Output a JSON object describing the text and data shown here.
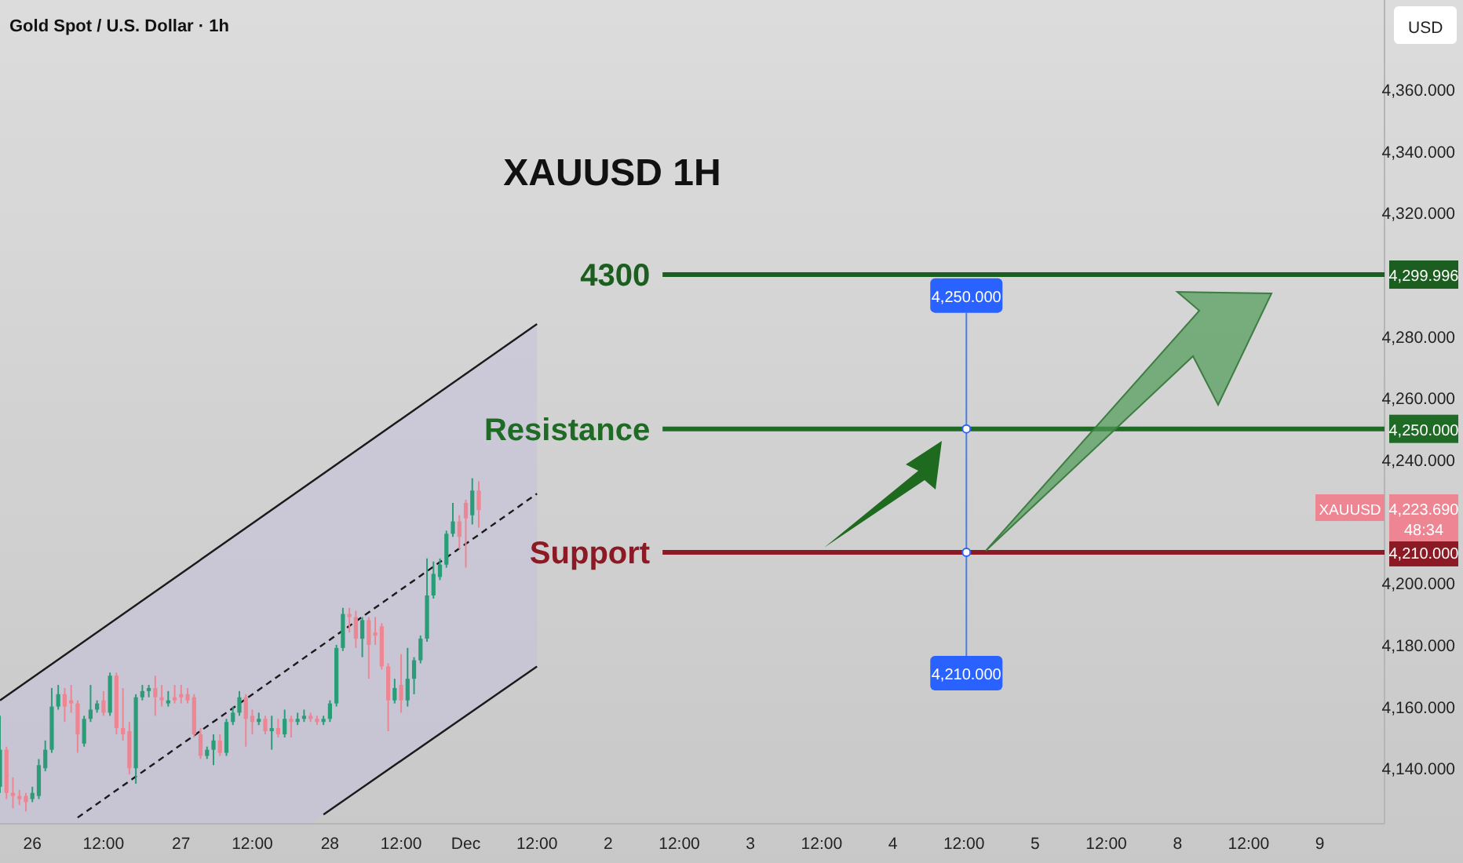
{
  "chart_data": {
    "type": "candlestick",
    "title": "Gold Spot / U.S. Dollar · 1h",
    "subtitle": "XAUUSD 1H",
    "categories": [
      null,
      null,
      null,
      null,
      null,
      "26",
      null,
      null,
      null,
      null,
      null,
      null,
      null,
      null,
      null,
      null,
      "12:00",
      null,
      null,
      null,
      null,
      null,
      null,
      null,
      null,
      null,
      null,
      null,
      "27",
      null,
      null,
      null,
      null,
      null,
      null,
      null,
      null,
      null,
      null,
      "12:00",
      null,
      null,
      null,
      null,
      null,
      null,
      null,
      null,
      null,
      null,
      null,
      "28",
      null,
      null,
      null,
      null,
      null,
      null,
      null,
      null,
      null,
      null,
      "12:00",
      null,
      null,
      null,
      null,
      null,
      null,
      null,
      null,
      null,
      "Dec",
      null,
      null,
      null,
      null,
      null,
      null,
      null,
      null,
      null,
      null,
      "12:00",
      null,
      null,
      null,
      null,
      null,
      null,
      null,
      null,
      null,
      null,
      "2",
      null,
      null,
      null,
      null,
      null,
      null,
      null,
      null,
      null,
      null,
      "12:00",
      null,
      null,
      null,
      null,
      null,
      null,
      null,
      null,
      null,
      null,
      "3",
      null,
      null,
      null,
      null,
      null,
      null,
      null,
      null,
      null,
      null,
      "12:00",
      null,
      null,
      null,
      null,
      null,
      null,
      null,
      null,
      null,
      null,
      "4",
      null,
      null,
      null,
      null,
      null,
      null,
      null,
      null,
      null,
      null,
      "12:00",
      null,
      null,
      null,
      null,
      null,
      null,
      null,
      null,
      null,
      null,
      "5",
      null,
      null,
      null,
      null,
      null,
      null,
      null,
      null,
      null,
      null,
      "12:00",
      null,
      null,
      null,
      null,
      null,
      null,
      null,
      null,
      null,
      null,
      "8",
      null,
      null,
      null,
      null,
      null,
      null,
      null,
      null,
      null,
      null,
      "12:00",
      null,
      null,
      null,
      null,
      null,
      null,
      null,
      null,
      null,
      null,
      "9",
      null,
      null,
      null,
      null,
      null,
      null,
      null,
      null,
      null,
      null
    ],
    "ohlc": [
      [
        4134,
        4157,
        4132,
        4146
      ],
      [
        4146,
        4147,
        4130,
        4132
      ],
      [
        4132,
        4137,
        4127,
        4131
      ],
      [
        4131,
        4133,
        4128,
        4130
      ],
      [
        4131,
        4132,
        4126,
        4129
      ],
      [
        4130,
        4134,
        4129,
        4132
      ],
      [
        4131,
        4143,
        4130,
        4141
      ],
      [
        4140,
        4149,
        4139,
        4146
      ],
      [
        4146,
        4166,
        4145,
        4160
      ],
      [
        4160,
        4167,
        4159,
        4164
      ],
      [
        4164,
        4166,
        4155,
        4160
      ],
      [
        4162,
        4167,
        4158,
        4161
      ],
      [
        4161,
        4162,
        4145,
        4151
      ],
      [
        4148,
        4157,
        4147,
        4156
      ],
      [
        4156,
        4167,
        4155,
        4159
      ],
      [
        4159,
        4162,
        4158,
        4161
      ],
      [
        4162,
        4165,
        4157,
        4158
      ],
      [
        4158,
        4171,
        4157,
        4170
      ],
      [
        4170,
        4171,
        4151,
        4153
      ],
      [
        4153,
        4166,
        4149,
        4151
      ],
      [
        4152,
        4155,
        4138,
        4140
      ],
      [
        4140,
        4164,
        4135,
        4163
      ],
      [
        4163,
        4167,
        4162,
        4165
      ],
      [
        4165,
        4167,
        4163,
        4166
      ],
      [
        4166,
        4170,
        4157,
        4163
      ],
      [
        4163,
        4167,
        4160,
        4162
      ],
      [
        4161,
        4165,
        4160,
        4162
      ],
      [
        4163,
        4167,
        4161,
        4162
      ],
      [
        4164,
        4167,
        4161,
        4163
      ],
      [
        4164,
        4166,
        4161,
        4162
      ],
      [
        4163,
        4164,
        4150,
        4151
      ],
      [
        4151,
        4153,
        4143,
        4144
      ],
      [
        4144,
        4147,
        4143,
        4146
      ],
      [
        4146,
        4151,
        4141,
        4149
      ],
      [
        4149,
        4151,
        4144,
        4145
      ],
      [
        4145,
        4156,
        4144,
        4155
      ],
      [
        4155,
        4160,
        4154,
        4158
      ],
      [
        4158,
        4165,
        4157,
        4163
      ],
      [
        4163,
        4164,
        4147,
        4156
      ],
      [
        4157,
        4159,
        4151,
        4155
      ],
      [
        4155,
        4158,
        4154,
        4156
      ],
      [
        4156,
        4157,
        4151,
        4152
      ],
      [
        4152,
        4157,
        4146,
        4153
      ],
      [
        4153,
        4156,
        4150,
        4151
      ],
      [
        4151,
        4159,
        4150,
        4156
      ],
      [
        4156,
        4157,
        4150,
        4155
      ],
      [
        4155,
        4158,
        4154,
        4156
      ],
      [
        4156,
        4159,
        4155,
        4157
      ],
      [
        4157,
        4158,
        4155,
        4156
      ],
      [
        4156,
        4157,
        4154,
        4155
      ],
      [
        4155,
        4157,
        4154,
        4156
      ],
      [
        4156,
        4162,
        4155,
        4161
      ],
      [
        4161,
        4180,
        4160,
        4179
      ],
      [
        4179,
        4192,
        4178,
        4190
      ],
      [
        4190,
        4192,
        4184,
        4189
      ],
      [
        4189,
        4191,
        4179,
        4182
      ],
      [
        4182,
        4189,
        4176,
        4188
      ],
      [
        4188,
        4189,
        4169,
        4180
      ],
      [
        4184,
        4189,
        4180,
        4183
      ],
      [
        4186,
        4187,
        4172,
        4173
      ],
      [
        4173,
        4174,
        4152,
        4162
      ],
      [
        4162,
        4169,
        4161,
        4166
      ],
      [
        4167,
        4177,
        4158,
        4162
      ],
      [
        4162,
        4179,
        4160,
        4169
      ],
      [
        4169,
        4176,
        4164,
        4175
      ],
      [
        4175,
        4183,
        4174,
        4182
      ],
      [
        4182,
        4208,
        4181,
        4196
      ],
      [
        4196,
        4207,
        4195,
        4203
      ],
      [
        4202,
        4208,
        4201,
        4206
      ],
      [
        4206,
        4217,
        4205,
        4216
      ],
      [
        4216,
        4226,
        4215,
        4220
      ],
      [
        4220,
        4222,
        4211,
        4215
      ],
      [
        4226,
        4227,
        4205,
        4221
      ],
      [
        4222,
        4234,
        4219,
        4230
      ],
      [
        4230,
        4233,
        4218,
        4223.69
      ],
      null,
      null,
      null,
      null,
      null,
      null,
      null,
      null,
      null,
      null,
      null,
      null,
      null,
      null,
      null,
      null,
      null,
      null,
      null,
      null,
      null,
      null,
      null,
      null,
      null,
      null,
      null,
      null,
      null,
      null,
      null,
      null,
      null,
      null,
      null,
      null,
      null,
      null,
      null,
      null,
      null,
      null,
      null,
      null,
      null,
      null,
      null,
      null,
      null,
      null,
      null,
      null,
      null,
      null,
      null,
      null,
      null,
      null,
      null,
      null,
      null,
      null,
      null,
      null,
      null,
      null,
      null,
      null,
      null,
      null,
      null,
      null,
      null,
      null,
      null,
      null,
      null,
      null,
      null,
      null,
      null,
      null,
      null,
      null,
      null,
      null,
      null,
      null,
      null,
      null,
      null,
      null,
      null,
      null,
      null,
      null,
      null,
      null,
      null,
      null,
      null,
      null,
      null,
      null,
      null,
      null,
      null,
      null,
      null,
      null,
      null,
      null,
      null,
      null,
      null,
      null,
      null,
      null,
      null,
      null,
      null,
      null,
      null,
      null,
      null,
      null,
      null,
      null,
      null,
      null,
      null,
      null,
      null,
      null,
      null,
      null,
      null,
      null,
      null,
      null
    ],
    "colors": [
      "#2a9d78",
      "#ee8592",
      "#ee8592",
      "#ee8592",
      "#ee8592",
      "#2a9d78",
      "#2a9d78",
      "#2a9d78",
      "#2a9d78",
      "#2a9d78",
      "#ee8592",
      "#ee8592",
      "#ee8592",
      "#2a9d78",
      "#2a9d78",
      "#2a9d78",
      "#ee8592",
      "#2a9d78",
      "#ee8592",
      "#ee8592",
      "#ee8592",
      "#2a9d78",
      "#2a9d78",
      "#2a9d78",
      "#ee8592",
      "#ee8592",
      "#2a9d78",
      "#ee8592",
      "#ee8592",
      "#ee8592",
      "#ee8592",
      "#ee8592",
      "#2a9d78",
      "#2a9d78",
      "#ee8592",
      "#2a9d78",
      "#2a9d78",
      "#2a9d78",
      "#ee8592",
      "#ee8592",
      "#2a9d78",
      "#ee8592",
      "#2a9d78",
      "#ee8592",
      "#2a9d78",
      "#ee8592",
      "#2a9d78",
      "#2a9d78",
      "#ee8592",
      "#ee8592",
      "#2a9d78",
      "#2a9d78",
      "#2a9d78",
      "#2a9d78",
      "#ee8592",
      "#ee8592",
      "#2a9d78",
      "#ee8592",
      "#ee8592",
      "#ee8592",
      "#ee8592",
      "#2a9d78",
      "#ee8592",
      "#2a9d78",
      "#2a9d78",
      "#2a9d78",
      "#2a9d78",
      "#2a9d78",
      "#2a9d78",
      "#2a9d78",
      "#2a9d78",
      "#ee8592",
      "#ee8592",
      "#2a9d78",
      "#ee8592",
      null,
      null,
      null,
      null,
      null,
      null,
      null,
      null,
      null,
      null,
      null,
      null,
      null,
      null,
      null,
      null,
      null,
      null,
      null,
      null,
      null,
      null,
      null,
      null,
      null,
      null,
      null,
      null,
      null,
      null,
      null,
      null,
      null,
      null,
      null,
      null,
      null,
      null,
      null,
      null,
      null,
      null,
      null,
      null,
      null,
      null,
      null,
      null,
      null,
      null,
      null,
      null,
      null,
      null,
      null,
      null,
      null,
      null,
      null,
      null,
      null,
      null,
      null,
      null,
      null,
      null,
      null,
      null,
      null,
      null,
      null,
      null,
      null,
      null,
      null,
      null,
      null,
      null,
      null,
      null,
      null,
      null,
      null,
      null,
      null,
      null,
      null,
      null,
      null,
      null,
      null,
      null,
      null,
      null,
      null,
      null,
      null,
      null,
      null,
      null,
      null,
      null,
      null,
      null,
      null,
      null,
      null,
      null,
      null,
      null,
      null,
      null,
      null,
      null,
      null,
      null,
      null,
      null,
      null,
      null,
      null,
      null,
      null,
      null,
      null,
      null,
      null,
      null,
      null,
      null,
      null,
      null,
      null,
      null,
      null,
      null,
      null,
      null,
      null,
      null
    ],
    "series": [
      {
        "type": "line",
        "color": "#1a1a1a",
        "values": [
          4162,
          null,
          null,
          null,
          null,
          null,
          null,
          null,
          null,
          null,
          null,
          null,
          null,
          null,
          null,
          null,
          null,
          null,
          null,
          null,
          null,
          null,
          null,
          null,
          null,
          null,
          null,
          null,
          null,
          null,
          null,
          null,
          null,
          null,
          null,
          null,
          null,
          null,
          null,
          null,
          null,
          null,
          null,
          null,
          null,
          null,
          null,
          null,
          null,
          null,
          null,
          null,
          null,
          null,
          null,
          null,
          null,
          null,
          null,
          null,
          null,
          null,
          null,
          null,
          null,
          null,
          null,
          null,
          null,
          null,
          null,
          null,
          null,
          null,
          null,
          null,
          null,
          null,
          null,
          null,
          null,
          null,
          null,
          4284,
          null,
          null,
          null,
          null,
          null,
          null,
          null,
          null,
          null,
          null,
          null,
          null,
          null,
          null,
          null,
          null,
          null,
          null,
          null,
          null,
          null,
          null,
          null,
          null,
          null,
          null,
          null,
          null,
          null,
          null,
          null,
          null,
          null,
          null,
          null,
          null,
          null,
          null,
          null,
          null,
          null,
          null,
          null,
          null,
          null,
          null,
          null,
          null,
          null,
          null,
          null,
          null,
          null,
          null,
          null,
          null,
          null,
          null,
          null,
          null,
          null,
          null,
          null,
          null,
          null,
          null,
          null,
          null,
          null,
          null,
          null,
          null,
          null,
          null,
          null,
          null,
          null,
          null,
          null,
          null,
          null,
          null,
          null,
          null,
          null,
          null,
          null,
          null,
          null,
          null,
          null,
          null,
          null,
          null,
          null,
          null,
          null,
          null,
          null,
          null,
          null,
          null,
          null,
          null,
          null,
          null,
          null,
          null,
          null,
          null,
          null,
          null,
          null,
          null,
          null,
          null,
          null,
          null,
          null,
          null,
          null,
          null,
          null,
          null,
          null,
          null,
          null,
          null,
          null,
          null,
          null
        ]
      },
      {
        "type": "line",
        "color": "#1a1a1a",
        "line_style": "dashed",
        "values": [
          null,
          null,
          null,
          null,
          null,
          null,
          null,
          null,
          null,
          null,
          null,
          null,
          4124,
          null,
          null,
          null,
          null,
          null,
          null,
          null,
          null,
          null,
          null,
          null,
          null,
          null,
          null,
          null,
          null,
          null,
          null,
          null,
          null,
          null,
          null,
          null,
          null,
          null,
          null,
          null,
          null,
          null,
          null,
          null,
          null,
          null,
          null,
          null,
          null,
          null,
          null,
          null,
          null,
          null,
          null,
          null,
          null,
          null,
          null,
          null,
          null,
          null,
          null,
          null,
          null,
          null,
          null,
          null,
          null,
          null,
          null,
          null,
          null,
          null,
          null,
          null,
          null,
          null,
          null,
          null,
          null,
          null,
          null,
          4229,
          null,
          null,
          null,
          null,
          null,
          null,
          null,
          null,
          null,
          null,
          null,
          null,
          null,
          null,
          null,
          null,
          null,
          null,
          null,
          null,
          null,
          null,
          null,
          null,
          null,
          null,
          null,
          null,
          null,
          null,
          null,
          null,
          null,
          null,
          null,
          null,
          null,
          null,
          null,
          null,
          null,
          null,
          null,
          null,
          null,
          null,
          null,
          null,
          null,
          null,
          null,
          null,
          null,
          null,
          null,
          null,
          null,
          null,
          null,
          null,
          null,
          null,
          null,
          null,
          null,
          null,
          null,
          null,
          null,
          null,
          null,
          null,
          null,
          null,
          null,
          null,
          null,
          null,
          null,
          null,
          null,
          null,
          null,
          null,
          null,
          null,
          null,
          null,
          null,
          null,
          null,
          null,
          null,
          null,
          null,
          null,
          null,
          null,
          null,
          null,
          null,
          null,
          null,
          null,
          null,
          null,
          null,
          null,
          null,
          null,
          null,
          null,
          null,
          null,
          null,
          null,
          null,
          null,
          null,
          null,
          null,
          null,
          null,
          null,
          null,
          null,
          null,
          null,
          null,
          null,
          null
        ]
      },
      {
        "type": "line",
        "color": "#1a1a1a",
        "values": [
          null,
          null,
          null,
          null,
          null,
          null,
          null,
          null,
          null,
          null,
          null,
          null,
          null,
          null,
          null,
          null,
          null,
          null,
          null,
          null,
          null,
          null,
          null,
          null,
          null,
          null,
          null,
          null,
          null,
          null,
          null,
          null,
          null,
          null,
          null,
          null,
          null,
          null,
          null,
          null,
          null,
          null,
          null,
          null,
          null,
          null,
          null,
          null,
          null,
          null,
          4125,
          null,
          null,
          null,
          null,
          null,
          null,
          null,
          null,
          null,
          null,
          null,
          null,
          null,
          null,
          null,
          null,
          null,
          null,
          null,
          null,
          null,
          null,
          null,
          null,
          null,
          null,
          null,
          null,
          null,
          null,
          null,
          null,
          4173,
          null,
          null,
          null,
          null,
          null,
          null,
          null,
          null,
          null,
          null,
          null,
          null,
          null,
          null,
          null,
          null,
          null,
          null,
          null,
          null,
          null,
          null,
          null,
          null,
          null,
          null,
          null,
          null,
          null,
          null,
          null,
          null,
          null,
          null,
          null,
          null,
          null,
          null,
          null,
          null,
          null,
          null,
          null,
          null,
          null,
          null,
          null,
          null,
          null,
          null,
          null,
          null,
          null,
          null,
          null,
          null,
          null,
          null,
          null,
          null,
          null,
          null,
          null,
          null,
          null,
          null,
          null,
          null,
          null,
          null,
          null,
          null,
          null,
          null,
          null,
          null,
          null,
          null,
          null,
          null,
          null,
          null,
          null,
          null,
          null,
          null,
          null,
          null,
          null,
          null,
          null,
          null,
          null,
          null,
          null,
          null,
          null,
          null,
          null,
          null,
          null,
          null,
          null,
          null,
          null,
          null,
          null,
          null,
          null,
          null,
          null,
          null,
          null,
          null,
          null,
          null,
          null,
          null,
          null,
          null,
          null,
          null,
          null,
          null,
          null,
          null,
          null,
          null,
          null,
          null,
          null
        ]
      }
    ],
    "ref_lines": [
      {
        "axis": "y",
        "value": 4299.996,
        "label": "4300",
        "color": "#1b5e20"
      },
      {
        "axis": "y",
        "value": 4250,
        "label": "Resistance",
        "color": "#1f6b26"
      },
      {
        "axis": "y",
        "value": 4210,
        "label": "Support",
        "color": "#8b1a24"
      }
    ],
    "annotations": [
      "USD",
      "XAUUSD",
      "48:34",
      "4,250.000",
      "4,210.000",
      "4,299.996",
      "4,223.690"
    ],
    "ylim": [
      4122,
      4389
    ],
    "yticks": [
      {
        "value": 4140,
        "label": "4,140.000"
      },
      {
        "value": 4160,
        "label": "4,160.000"
      },
      {
        "value": 4180,
        "label": "4,180.000"
      },
      {
        "value": 4200,
        "label": "4,200.000"
      },
      {
        "value": 4240,
        "label": "4,240.000"
      },
      {
        "value": 4260,
        "label": "4,260.000"
      },
      {
        "value": 4280,
        "label": "4,280.000"
      },
      {
        "value": 4320,
        "label": "4,320.000"
      },
      {
        "value": 4340,
        "label": "4,340.000"
      },
      {
        "value": 4360,
        "label": "4,360.000"
      }
    ]
  }
}
